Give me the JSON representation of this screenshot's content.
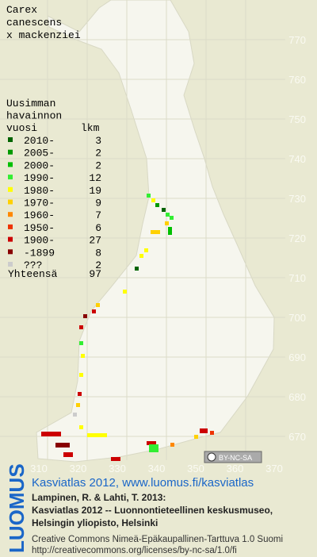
{
  "title": [
    "Carex",
    "canescens",
    "x mackenziei"
  ],
  "legend": {
    "heading": [
      "Uusimman",
      "havainnon",
      "vuosi"
    ],
    "count_heading": "lkm",
    "rows": [
      {
        "label": "2010-",
        "count": 3,
        "color": "#006400"
      },
      {
        "label": "2005-",
        "count": 2,
        "color": "#009900"
      },
      {
        "label": "2000-",
        "count": 2,
        "color": "#00c000"
      },
      {
        "label": "1990-",
        "count": 12,
        "color": "#33ee33"
      },
      {
        "label": "1980-",
        "count": 19,
        "color": "#ffff00"
      },
      {
        "label": "1970-",
        "count": 9,
        "color": "#ffd000"
      },
      {
        "label": "1960-",
        "count": 7,
        "color": "#ff8800"
      },
      {
        "label": "1950-",
        "count": 6,
        "color": "#ee3300"
      },
      {
        "label": "1900-",
        "count": 27,
        "color": "#cc0000"
      },
      {
        "label": "-1899",
        "count": 8,
        "color": "#880000"
      },
      {
        "label": "???",
        "count": 2,
        "color": "#cccccc"
      }
    ],
    "total_label": "Yhteensä",
    "total": 97
  },
  "x_labels": [
    "310",
    "320",
    "330",
    "340",
    "350",
    "360",
    "370"
  ],
  "y_labels": [
    "770",
    "760",
    "750",
    "740",
    "730",
    "720",
    "710",
    "700",
    "690",
    "680",
    "670"
  ],
  "badge": "BY-NC-SA",
  "logo": "LUOMUS",
  "footer": {
    "link": "Kasviatlas 2012, www.luomus.fi/kasviatlas",
    "citation": [
      "Lampinen, R. & Lahti, T. 2013:",
      "Kasviatlas 2012 -- Luonnontieteellinen keskusmuseo,",
      "Helsingin yliopisto, Helsinki"
    ],
    "license": [
      "Creative Commons Nimeä-Epäkaupallinen-Tarttuva 1.0 Suomi",
      "http://creativecommons.org/licenses/by-nc-sa/1.0/fi"
    ]
  }
}
